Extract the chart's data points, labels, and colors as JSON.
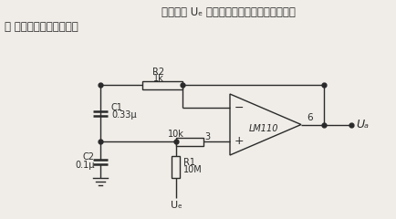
{
  "title_line1": "输入信号 Uₑ 与接地端互料掉换了位置，形成",
  "title_line2": "了 一个带通滤波器电路。",
  "bg_color": "#f0ede8",
  "line_color": "#2a2a2a",
  "text_color": "#2a2a2a",
  "label_R2": "R2",
  "label_R2_val": "1k",
  "label_C1": "C1",
  "label_C1_val": "0.33μ",
  "label_C2": "C2",
  "label_C2_val": "0.1μ",
  "label_R_10k": "10k",
  "label_pin3": "3",
  "label_R1": "R1",
  "label_R1_val": "10M",
  "label_lm110": "LM110",
  "label_pin6": "6",
  "label_Ua": "Uₐ",
  "label_Ue": "Uₑ",
  "label_minus": "−",
  "label_plus": "+"
}
